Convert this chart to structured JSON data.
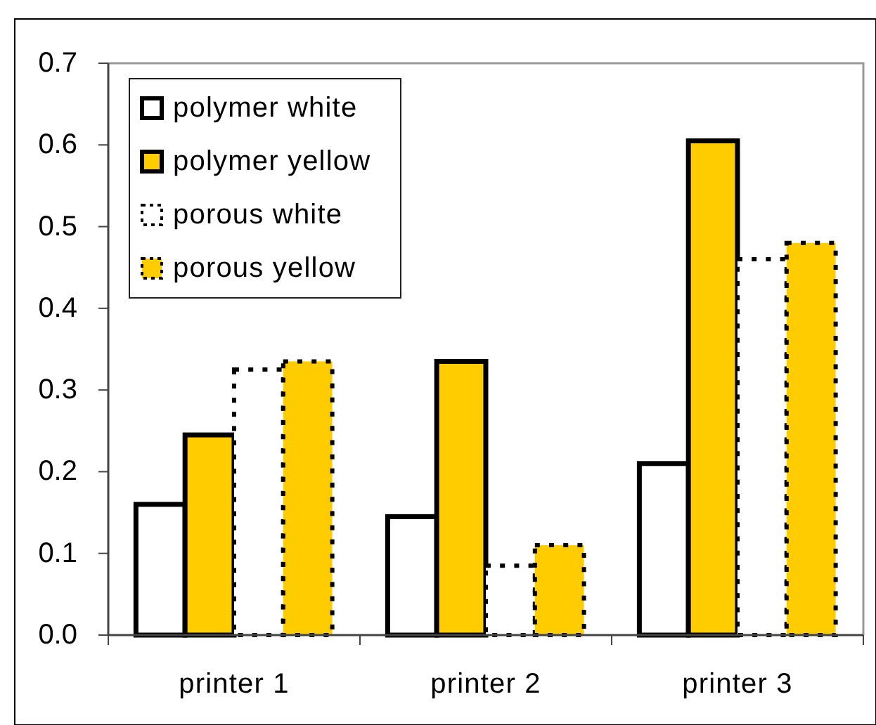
{
  "chart_data": {
    "type": "bar",
    "categories": [
      "printer 1",
      "printer 2",
      "printer 3"
    ],
    "series": [
      {
        "name": "polymer white",
        "color": "#ffffff",
        "line_style": "solid",
        "values": [
          0.16,
          0.145,
          0.21
        ]
      },
      {
        "name": "polymer yellow",
        "color": "#ffcc00",
        "line_style": "solid",
        "values": [
          0.245,
          0.335,
          0.605
        ]
      },
      {
        "name": "porous white",
        "color": "#ffffff",
        "line_style": "dotted",
        "values": [
          0.325,
          0.085,
          0.46
        ]
      },
      {
        "name": "porous yellow",
        "color": "#ffcc00",
        "line_style": "dotted",
        "values": [
          0.335,
          0.11,
          0.48
        ]
      }
    ],
    "ylim": [
      0,
      0.7
    ],
    "yticks": [
      {
        "value": 0,
        "label": "0.0"
      },
      0.1,
      0.2,
      0.3,
      0.4,
      0.5,
      0.6,
      0.7
    ],
    "legend": "top left"
  }
}
